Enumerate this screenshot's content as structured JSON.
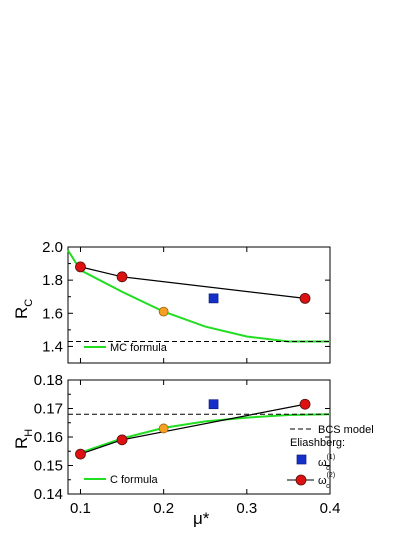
{
  "chart_data": [
    {
      "type": "line",
      "ylabel": "R",
      "ylabel_subscript": "C",
      "xlim": [
        0.085,
        0.4
      ],
      "ylim": [
        1.3,
        2.0
      ],
      "yticks": [
        1.4,
        1.6,
        1.8,
        2.0
      ],
      "ytick_labels": [
        "1.4",
        "1.6",
        "1.8",
        "2.0"
      ],
      "legend_location": "lower-left",
      "series": [
        {
          "name": "MC formula",
          "color": "#22dd22",
          "style": "solid",
          "x": [
            0.085,
            0.1,
            0.15,
            0.2,
            0.25,
            0.3,
            0.35,
            0.4
          ],
          "y": [
            1.98,
            1.86,
            1.73,
            1.61,
            1.52,
            1.46,
            1.43,
            1.43
          ]
        },
        {
          "name": "BCS model",
          "color": "#000000",
          "style": "dashed",
          "x": [
            0.085,
            0.4
          ],
          "y": [
            1.43,
            1.43
          ]
        },
        {
          "name": "ω(1)c",
          "marker": "square",
          "color": "#1530c8",
          "x": [
            0.26
          ],
          "y": [
            1.69
          ]
        },
        {
          "name": "ω(2)c",
          "marker": "circle",
          "color": "#dd1111",
          "line": "#000000",
          "x": [
            0.1,
            0.15,
            0.37
          ],
          "y": [
            1.88,
            1.82,
            1.69
          ]
        },
        {
          "name": "highlight",
          "marker": "circle",
          "color": "#f5a020",
          "x": [
            0.2
          ],
          "y": [
            1.61
          ]
        }
      ]
    },
    {
      "type": "line",
      "xlabel": "μ*",
      "ylabel": "R",
      "ylabel_subscript": "H",
      "xlim": [
        0.085,
        0.4
      ],
      "ylim": [
        0.14,
        0.18
      ],
      "xticks": [
        0.1,
        0.2,
        0.3,
        0.4
      ],
      "xtick_labels": [
        "0.1",
        "0.2",
        "0.3",
        "0.4"
      ],
      "yticks": [
        0.14,
        0.15,
        0.16,
        0.17,
        0.18
      ],
      "ytick_labels": [
        "0.14",
        "0.15",
        "0.16",
        "0.17",
        "0.18"
      ],
      "series": [
        {
          "name": "C formula",
          "color": "#22dd22",
          "style": "solid",
          "x": [
            0.1,
            0.15,
            0.2,
            0.25,
            0.3,
            0.35,
            0.4
          ],
          "y": [
            0.1545,
            0.1595,
            0.1632,
            0.1655,
            0.1668,
            0.1677,
            0.168
          ]
        },
        {
          "name": "BCS model",
          "color": "#000000",
          "style": "dashed",
          "x": [
            0.085,
            0.4
          ],
          "y": [
            0.168,
            0.168
          ]
        },
        {
          "name": "ω(1)c",
          "marker": "square",
          "color": "#1530c8",
          "x": [
            0.26
          ],
          "y": [
            0.1715
          ]
        },
        {
          "name": "ω(2)c",
          "marker": "circle",
          "color": "#dd1111",
          "line": "#000000",
          "x": [
            0.1,
            0.15,
            0.37
          ],
          "y": [
            0.154,
            0.159,
            0.1715
          ]
        },
        {
          "name": "highlight",
          "marker": "circle",
          "color": "#f5a020",
          "x": [
            0.2
          ],
          "y": [
            0.163
          ]
        }
      ]
    }
  ],
  "legend": {
    "top_label": "MC formula",
    "bottom_label": "C formula",
    "bcs_label": "BCS model",
    "eliashberg_label": "Eliashberg:",
    "omega1": {
      "base": "ω",
      "sup": "(1)",
      "sub": "c"
    },
    "omega2": {
      "base": "ω",
      "sup": "(2)",
      "sub": "c"
    }
  }
}
